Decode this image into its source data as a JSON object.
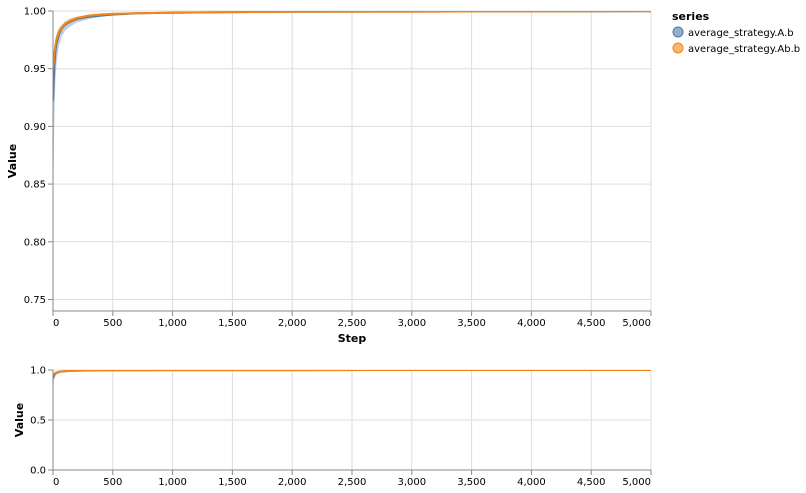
{
  "chart_data": [
    {
      "type": "area",
      "view": "main",
      "xlabel": "Step",
      "ylabel": "Value",
      "xlim": [
        0,
        5000
      ],
      "ylim": [
        0.74,
        1.0
      ],
      "xticks": [
        0,
        500,
        1000,
        1500,
        2000,
        2500,
        3000,
        3500,
        4000,
        4500,
        5000
      ],
      "xtick_labels": [
        "0",
        "500",
        "1,000",
        "1,500",
        "2,000",
        "2,500",
        "3,000",
        "3,500",
        "4,000",
        "4,500",
        "5,000"
      ],
      "yticks": [
        0.75,
        0.8,
        0.85,
        0.9,
        0.95,
        1.0
      ],
      "ytick_labels": [
        "0.75",
        "0.80",
        "0.85",
        "0.90",
        "0.95",
        "1.00"
      ],
      "grid": true,
      "legend": {
        "title": "series",
        "position": "top-right"
      },
      "series": [
        {
          "name": "average_strategy.A.b",
          "color": "#4c78a8",
          "x": [
            0,
            5,
            10,
            20,
            30,
            50,
            75,
            100,
            150,
            200,
            300,
            400,
            500,
            700,
            1000,
            1500,
            2000,
            3000,
            4000,
            5000
          ],
          "y": [
            0.922,
            0.935,
            0.95,
            0.965,
            0.972,
            0.98,
            0.985,
            0.988,
            0.991,
            0.993,
            0.995,
            0.996,
            0.997,
            0.998,
            0.9985,
            0.999,
            0.9993,
            0.9995,
            0.9997,
            0.9998
          ],
          "lower": [
            0.8,
            0.86,
            0.9,
            0.94,
            0.955,
            0.97,
            0.978,
            0.983,
            0.987,
            0.99,
            0.993,
            0.995,
            0.996,
            0.997,
            0.998,
            0.9985,
            0.999,
            0.9992,
            0.9995,
            0.9996
          ],
          "upper": [
            0.95,
            0.96,
            0.968,
            0.976,
            0.98,
            0.985,
            0.988,
            0.99,
            0.993,
            0.995,
            0.996,
            0.997,
            0.998,
            0.9985,
            0.999,
            0.9993,
            0.9995,
            0.9997,
            0.9998,
            0.9999
          ]
        },
        {
          "name": "average_strategy.Ab.b",
          "color": "#f58518",
          "x": [
            0,
            5,
            10,
            20,
            30,
            50,
            75,
            100,
            150,
            200,
            300,
            400,
            500,
            700,
            1000,
            1500,
            2000,
            3000,
            4000,
            5000
          ],
          "y": [
            0.95,
            0.956,
            0.962,
            0.97,
            0.976,
            0.982,
            0.986,
            0.989,
            0.992,
            0.994,
            0.996,
            0.997,
            0.9975,
            0.998,
            0.9985,
            0.999,
            0.9993,
            0.9995,
            0.9997,
            0.9998
          ],
          "lower": [
            0.945,
            0.95,
            0.957,
            0.966,
            0.972,
            0.979,
            0.984,
            0.987,
            0.99,
            0.992,
            0.995,
            0.996,
            0.997,
            0.9975,
            0.998,
            0.9987,
            0.999,
            0.9993,
            0.9995,
            0.9996
          ],
          "upper": [
            0.956,
            0.962,
            0.967,
            0.974,
            0.98,
            0.985,
            0.988,
            0.991,
            0.994,
            0.995,
            0.997,
            0.998,
            0.9985,
            0.999,
            0.9992,
            0.9994,
            0.9996,
            0.9997,
            0.9998,
            0.9999
          ]
        }
      ]
    },
    {
      "type": "area",
      "view": "overview",
      "xlabel": "",
      "ylabel": "Value",
      "xlim": [
        0,
        5000
      ],
      "ylim": [
        0,
        1.0
      ],
      "xticks": [
        0,
        500,
        1000,
        1500,
        2000,
        2500,
        3000,
        3500,
        4000,
        4500,
        5000
      ],
      "xtick_labels": [
        "0",
        "500",
        "1,000",
        "1,500",
        "2,000",
        "2,500",
        "3,000",
        "3,500",
        "4,000",
        "4,500",
        "5,000"
      ],
      "yticks": [
        0.0,
        0.5,
        1.0
      ],
      "ytick_labels": [
        "0.0",
        "0.5",
        "1.0"
      ],
      "grid": true
    }
  ]
}
